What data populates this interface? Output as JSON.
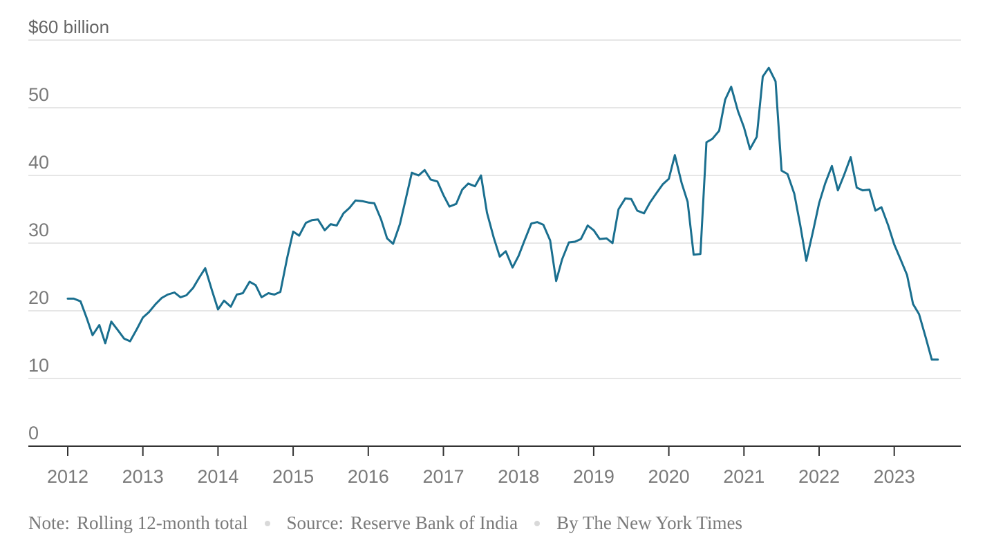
{
  "chart_data": {
    "type": "line",
    "ylim": [
      0,
      60
    ],
    "y_ticks": [
      0,
      10,
      20,
      30,
      40,
      50,
      60
    ],
    "y_tick_labels": [
      "0",
      "10",
      "20",
      "30",
      "40",
      "50",
      "$60 billion"
    ],
    "x_ticks": [
      "2012",
      "2013",
      "2014",
      "2015",
      "2016",
      "2017",
      "2018",
      "2019",
      "2020",
      "2021",
      "2022",
      "2023"
    ],
    "grid": true,
    "line_color": "#1a6f8f",
    "series": [
      {
        "x": [
          2012.0,
          2012.08,
          2012.17,
          2012.25,
          2012.33,
          2012.42,
          2012.5,
          2012.58,
          2012.67,
          2012.75,
          2012.83,
          2012.92,
          2013.0,
          2013.08,
          2013.17,
          2013.25,
          2013.33,
          2013.42,
          2013.5,
          2013.58,
          2013.67,
          2013.75,
          2013.83,
          2013.92,
          2014.0,
          2014.08,
          2014.17,
          2014.25,
          2014.33,
          2014.42,
          2014.5,
          2014.58,
          2014.67,
          2014.75,
          2014.83,
          2014.92,
          2015.0,
          2015.08,
          2015.17,
          2015.25,
          2015.33,
          2015.42,
          2015.5,
          2015.58,
          2015.67,
          2015.75,
          2015.83,
          2015.92,
          2016.0,
          2016.08,
          2016.17,
          2016.25,
          2016.33,
          2016.42,
          2016.5,
          2016.58,
          2016.67,
          2016.75,
          2016.83,
          2016.92,
          2017.0,
          2017.08,
          2017.17,
          2017.25,
          2017.33,
          2017.42,
          2017.5,
          2017.58,
          2017.67,
          2017.75,
          2017.83,
          2017.92,
          2018.0,
          2018.08,
          2018.17,
          2018.25,
          2018.33,
          2018.42,
          2018.5,
          2018.58,
          2018.67,
          2018.75,
          2018.83,
          2018.92,
          2019.0,
          2019.08,
          2019.17,
          2019.25,
          2019.33,
          2019.42,
          2019.5,
          2019.58,
          2019.67,
          2019.75,
          2019.83,
          2019.92,
          2020.0,
          2020.08,
          2020.17,
          2020.25,
          2020.33,
          2020.42,
          2020.5,
          2020.58,
          2020.67,
          2020.75,
          2020.83,
          2020.92,
          2021.0,
          2021.08,
          2021.17,
          2021.25,
          2021.33,
          2021.42,
          2021.5,
          2021.58,
          2021.67,
          2021.75,
          2021.83,
          2021.92,
          2022.0,
          2022.08,
          2022.17,
          2022.25,
          2022.33,
          2022.42,
          2022.5,
          2022.58,
          2022.67,
          2022.75,
          2022.83,
          2022.92,
          2023.0,
          2023.08,
          2023.17,
          2023.25,
          2023.33,
          2023.42,
          2023.5,
          2023.58
        ],
        "values": [
          21.8,
          21.8,
          21.4,
          19.0,
          16.4,
          17.9,
          15.2,
          18.4,
          17.1,
          15.9,
          15.5,
          17.3,
          19.0,
          19.8,
          21.0,
          21.9,
          22.4,
          22.7,
          22.0,
          22.3,
          23.4,
          24.9,
          26.3,
          23.0,
          20.2,
          21.5,
          20.6,
          22.4,
          22.6,
          24.3,
          23.8,
          22.0,
          22.6,
          22.4,
          22.8,
          27.8,
          31.7,
          31.1,
          33.0,
          33.4,
          33.5,
          31.9,
          32.8,
          32.6,
          34.4,
          35.2,
          36.3,
          36.2,
          36.0,
          35.9,
          33.5,
          30.7,
          29.9,
          32.8,
          36.6,
          40.4,
          40.0,
          40.8,
          39.4,
          39.1,
          37.1,
          35.4,
          35.8,
          37.9,
          38.8,
          38.4,
          40.0,
          34.5,
          30.8,
          28.0,
          28.8,
          26.4,
          28.1,
          30.4,
          32.9,
          33.1,
          32.7,
          30.4,
          24.4,
          27.6,
          30.1,
          30.2,
          30.6,
          32.6,
          31.9,
          30.6,
          30.7,
          30.0,
          35.0,
          36.6,
          36.5,
          34.8,
          34.4,
          36.0,
          37.3,
          38.7,
          39.5,
          43.0,
          38.9,
          36.1,
          28.3,
          28.4,
          44.9,
          45.4,
          46.6,
          51.2,
          53.1,
          49.5,
          47.1,
          43.9,
          45.7,
          54.6,
          55.9,
          53.9,
          40.7,
          40.2,
          37.3,
          32.6,
          27.4,
          31.8,
          35.9,
          38.8,
          41.4,
          37.8,
          40.0,
          42.7,
          38.2,
          37.8,
          37.9,
          34.8,
          35.3,
          32.6,
          29.8,
          27.7,
          25.3,
          21.0,
          19.5,
          16.0,
          12.8,
          12.8
        ]
      }
    ]
  },
  "footer": {
    "note_label": "Note:",
    "note_text": "Rolling 12-month total",
    "source_label": "Source:",
    "source_text": "Reserve Bank of India",
    "byline": "By The New York Times"
  }
}
